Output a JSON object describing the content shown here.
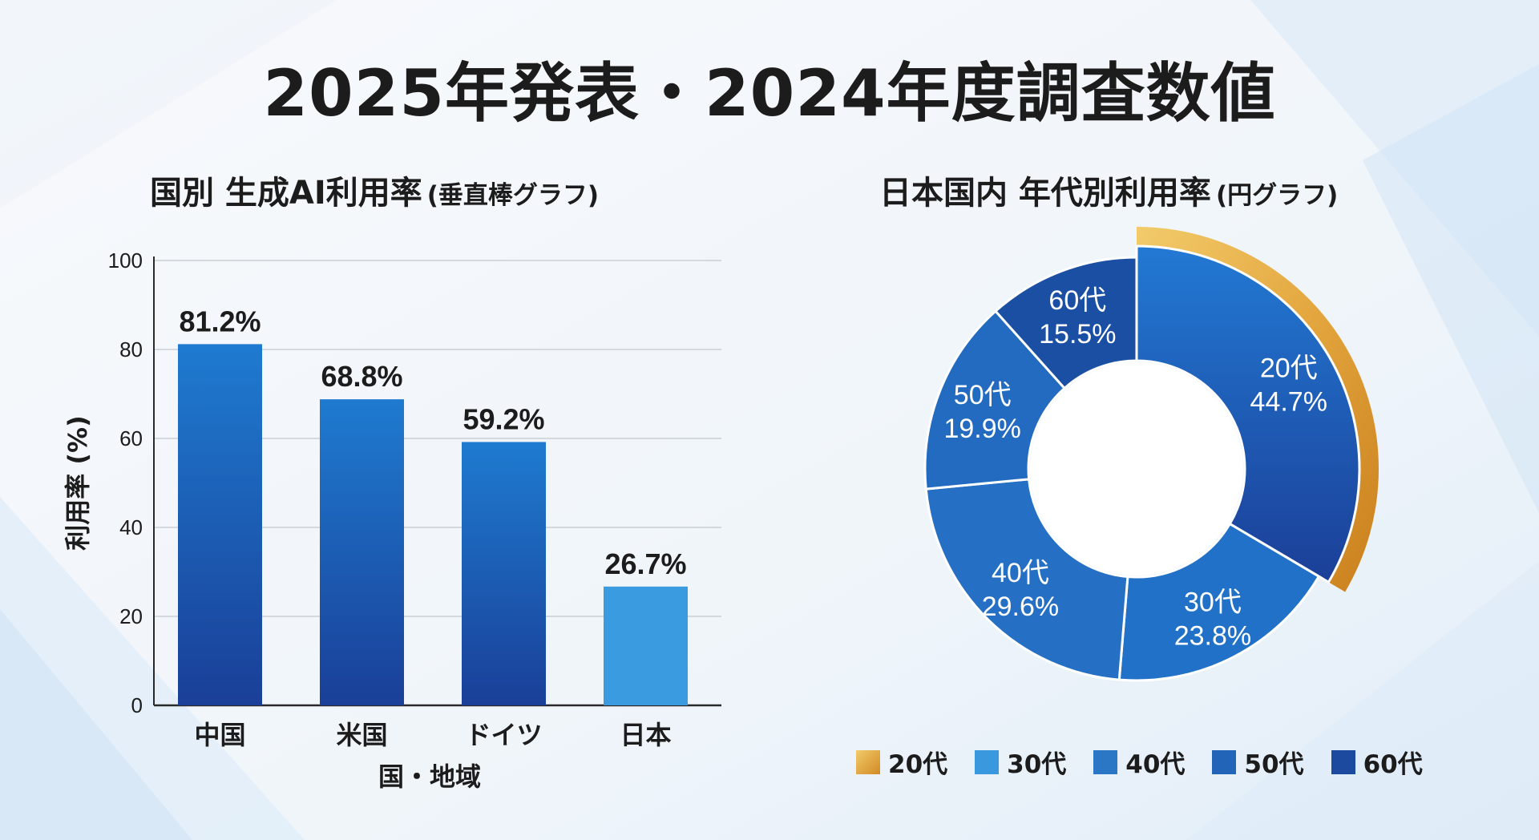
{
  "title": "2025年発表・2024年度調査数値",
  "chart_data": [
    {
      "type": "bar",
      "title": "国別 生成AI利用率",
      "subtitle": "(垂直棒グラフ)",
      "categories": [
        "中国",
        "米国",
        "ドイツ",
        "日本"
      ],
      "values": [
        81.2,
        68.8,
        59.2,
        26.7
      ],
      "value_labels": [
        "81.2%",
        "68.8%",
        "59.2%",
        "26.7%"
      ],
      "xlabel": "国・地域",
      "ylabel": "利用率 (%)",
      "ylim": [
        0,
        100
      ],
      "yticks": [
        0,
        20,
        40,
        60,
        80,
        100
      ],
      "grid": true,
      "colors": [
        "#1f5fb8",
        "#1f5fb8",
        "#1f5fb8",
        "#3b9be0"
      ]
    },
    {
      "type": "pie",
      "title": "日本国内 年代別利用率",
      "subtitle": "(円グラフ)",
      "donut": true,
      "labels": [
        "20代",
        "30代",
        "40代",
        "50代",
        "60代"
      ],
      "values": [
        44.7,
        23.8,
        29.6,
        19.9,
        15.5
      ],
      "value_labels": [
        "44.7%",
        "23.8%",
        "29.6%",
        "19.9%",
        "15.5%"
      ],
      "highlight": "20代",
      "legend": [
        "20代",
        "30代",
        "40代",
        "50代",
        "60代"
      ],
      "legend_position": "bottom",
      "colors": [
        "#1f62c2",
        "#2171c9",
        "#2570c4",
        "#236bc0",
        "#1b4fa3"
      ],
      "label_colors": [
        "#e3a13a",
        "#ffffff",
        "#ffffff",
        "#ffffff",
        "#ffffff"
      ],
      "legend_colors": [
        "#e0a43e",
        "#3a98de",
        "#2b77c6",
        "#2265b8",
        "#1b4a9e"
      ]
    }
  ]
}
